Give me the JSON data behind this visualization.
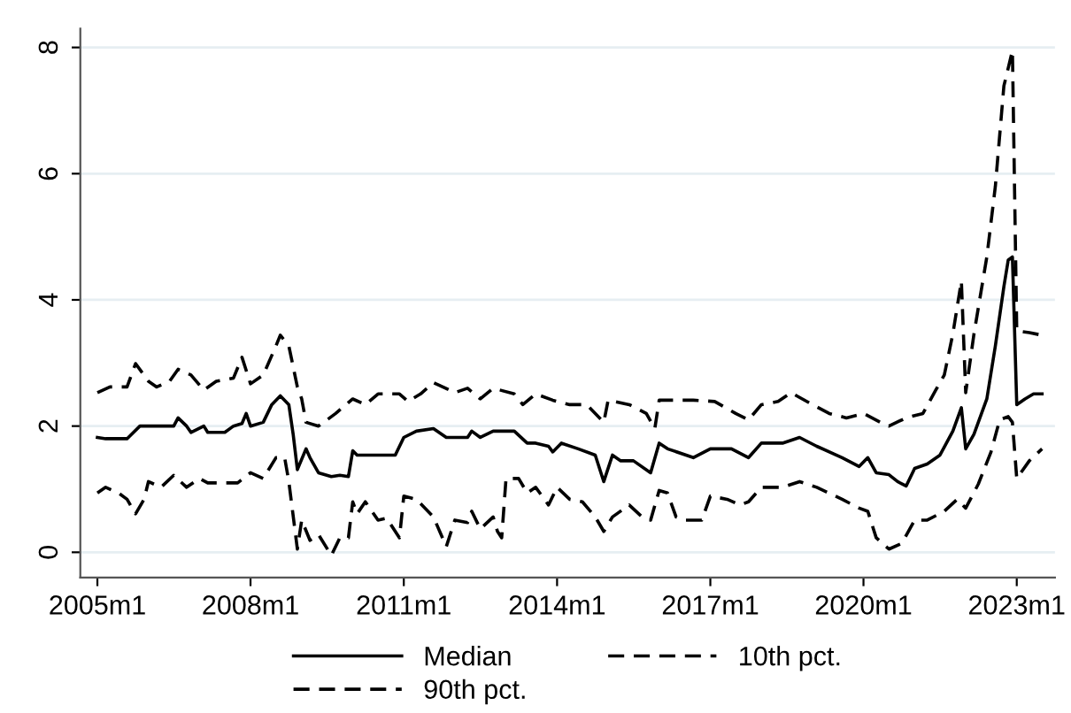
{
  "chart_data": {
    "type": "line",
    "xlim": [
      "2004-09",
      "2023-10"
    ],
    "ylim": [
      -0.4,
      8.3
    ],
    "xticks": [
      {
        "value": "2005-01",
        "label": "2005m1"
      },
      {
        "value": "2008-01",
        "label": "2008m1"
      },
      {
        "value": "2011-01",
        "label": "2011m1"
      },
      {
        "value": "2014-01",
        "label": "2014m1"
      },
      {
        "value": "2017-01",
        "label": "2017m1"
      },
      {
        "value": "2020-01",
        "label": "2020m1"
      },
      {
        "value": "2023-01",
        "label": "2023m1"
      }
    ],
    "yticks": [
      0,
      2,
      4,
      6,
      8
    ],
    "grid": "y",
    "legend": "bottom",
    "series": [
      {
        "name": "Median",
        "color": "#000000",
        "line_style": "solid",
        "x": [
          "2005-01",
          "2005-03",
          "2005-08",
          "2005-11",
          "2006-07",
          "2006-08",
          "2006-10",
          "2006-11",
          "2007-02",
          "2007-03",
          "2007-07",
          "2007-09",
          "2007-11",
          "2007-12",
          "2008-01",
          "2008-04",
          "2008-06",
          "2008-08",
          "2008-10",
          "2008-11",
          "2008-12",
          "2009-02",
          "2009-03",
          "2009-05",
          "2009-08",
          "2009-10",
          "2009-12",
          "2010-01",
          "2010-02",
          "2010-04",
          "2010-11",
          "2011-01",
          "2011-04",
          "2011-08",
          "2011-11",
          "2012-04",
          "2012-05",
          "2012-07",
          "2012-10",
          "2013-03",
          "2013-06",
          "2013-08",
          "2013-11",
          "2013-12",
          "2014-02",
          "2014-06",
          "2014-10",
          "2014-12",
          "2015-02",
          "2015-04",
          "2015-07",
          "2015-11",
          "2016-01",
          "2016-03",
          "2016-09",
          "2017-01",
          "2017-06",
          "2017-10",
          "2018-01",
          "2018-06",
          "2018-10",
          "2019-02",
          "2019-08",
          "2019-12",
          "2020-02",
          "2020-04",
          "2020-07",
          "2020-09",
          "2020-11",
          "2021-01",
          "2021-04",
          "2021-07",
          "2021-10",
          "2021-12",
          "2022-01",
          "2022-03",
          "2022-06",
          "2022-08",
          "2022-10",
          "2022-11",
          "2022-12",
          "2023-01",
          "2023-03",
          "2023-05",
          "2023-07"
        ],
        "values": [
          1.82,
          1.8,
          1.8,
          2.0,
          2.0,
          2.13,
          2.0,
          1.9,
          2.0,
          1.9,
          1.9,
          2.0,
          2.04,
          2.2,
          2.0,
          2.06,
          2.34,
          2.48,
          2.34,
          1.87,
          1.31,
          1.64,
          1.5,
          1.26,
          1.2,
          1.22,
          1.2,
          1.61,
          1.54,
          1.54,
          1.54,
          1.82,
          1.92,
          1.96,
          1.82,
          1.82,
          1.92,
          1.82,
          1.92,
          1.92,
          1.73,
          1.73,
          1.68,
          1.59,
          1.73,
          1.64,
          1.54,
          1.12,
          1.54,
          1.45,
          1.45,
          1.26,
          1.73,
          1.64,
          1.5,
          1.64,
          1.64,
          1.5,
          1.73,
          1.73,
          1.82,
          1.68,
          1.5,
          1.36,
          1.5,
          1.26,
          1.23,
          1.12,
          1.05,
          1.33,
          1.4,
          1.54,
          1.92,
          2.29,
          1.64,
          1.87,
          2.43,
          3.27,
          4.21,
          4.63,
          4.68,
          2.34,
          2.43,
          2.51,
          2.51
        ]
      },
      {
        "name": "10th pct.",
        "color": "#000000",
        "line_style": "dashed",
        "x": [
          "2005-01",
          "2005-03",
          "2005-06",
          "2005-08",
          "2005-10",
          "2005-12",
          "2006-01",
          "2006-04",
          "2006-07",
          "2006-10",
          "2007-01",
          "2007-03",
          "2007-10",
          "2008-01",
          "2008-04",
          "2008-07",
          "2008-09",
          "2008-10",
          "2008-12",
          "2009-01",
          "2009-03",
          "2009-05",
          "2009-08",
          "2009-10",
          "2009-12",
          "2010-01",
          "2010-02",
          "2010-04",
          "2010-07",
          "2010-09",
          "2010-12",
          "2011-01",
          "2011-04",
          "2011-08",
          "2011-11",
          "2012-01",
          "2012-04",
          "2012-05",
          "2012-07",
          "2012-10",
          "2012-11",
          "2012-12",
          "2013-01",
          "2013-04",
          "2013-06",
          "2013-08",
          "2013-11",
          "2014-01",
          "2014-04",
          "2014-07",
          "2014-10",
          "2014-12",
          "2015-02",
          "2015-06",
          "2015-09",
          "2015-11",
          "2016-01",
          "2016-03",
          "2016-05",
          "2016-07",
          "2016-11",
          "2017-01",
          "2017-05",
          "2017-08",
          "2017-10",
          "2018-01",
          "2018-06",
          "2018-10",
          "2019-02",
          "2019-08",
          "2019-12",
          "2020-02",
          "2020-04",
          "2020-07",
          "2020-10",
          "2021-01",
          "2021-04",
          "2021-08",
          "2021-11",
          "2022-01",
          "2022-04",
          "2022-07",
          "2022-09",
          "2022-11",
          "2022-12",
          "2023-01",
          "2023-04",
          "2023-07"
        ],
        "values": [
          0.94,
          1.03,
          0.94,
          0.84,
          0.61,
          0.84,
          1.12,
          1.03,
          1.22,
          1.03,
          1.17,
          1.1,
          1.1,
          1.26,
          1.17,
          1.5,
          1.5,
          1.12,
          0.05,
          0.51,
          0.19,
          0.28,
          -0.05,
          0.23,
          0.23,
          0.8,
          0.61,
          0.8,
          0.51,
          0.54,
          0.23,
          0.89,
          0.84,
          0.56,
          0.09,
          0.51,
          0.47,
          0.65,
          0.37,
          0.56,
          0.33,
          0.23,
          1.17,
          1.17,
          0.94,
          1.03,
          0.75,
          1.03,
          0.84,
          0.8,
          0.56,
          0.33,
          0.56,
          0.75,
          0.56,
          0.51,
          0.98,
          0.94,
          0.56,
          0.51,
          0.51,
          0.89,
          0.84,
          0.75,
          0.8,
          1.03,
          1.03,
          1.12,
          1.03,
          0.84,
          0.7,
          0.65,
          0.23,
          0.05,
          0.14,
          0.51,
          0.51,
          0.65,
          0.84,
          0.7,
          1.08,
          1.59,
          2.1,
          2.15,
          2.06,
          1.17,
          1.45,
          1.64
        ]
      },
      {
        "name": "90th pct.",
        "color": "#000000",
        "line_style": "dashed",
        "x": [
          "2005-01",
          "2005-04",
          "2005-08",
          "2005-10",
          "2006-01",
          "2006-03",
          "2006-06",
          "2006-08",
          "2006-11",
          "2007-02",
          "2007-05",
          "2007-09",
          "2007-11",
          "2008-01",
          "2008-04",
          "2008-07",
          "2008-08",
          "2008-10",
          "2008-12",
          "2009-01",
          "2009-02",
          "2009-05",
          "2009-09",
          "2010-01",
          "2010-04",
          "2010-07",
          "2010-12",
          "2011-02",
          "2011-05",
          "2011-08",
          "2012-01",
          "2012-04",
          "2012-07",
          "2012-10",
          "2013-03",
          "2013-05",
          "2013-08",
          "2013-12",
          "2014-04",
          "2014-08",
          "2014-12",
          "2015-01",
          "2015-06",
          "2015-10",
          "2015-12",
          "2016-01",
          "2016-09",
          "2017-02",
          "2017-07",
          "2017-10",
          "2018-01",
          "2018-05",
          "2018-08",
          "2019-01",
          "2019-05",
          "2019-09",
          "2020-01",
          "2020-05",
          "2020-07",
          "2020-11",
          "2021-03",
          "2021-06",
          "2021-08",
          "2021-10",
          "2021-12",
          "2022-01",
          "2022-03",
          "2022-06",
          "2022-08",
          "2022-10",
          "2022-12",
          "2023-01",
          "2023-04",
          "2023-07"
        ],
        "values": [
          2.53,
          2.62,
          2.62,
          2.99,
          2.71,
          2.62,
          2.71,
          2.9,
          2.81,
          2.57,
          2.71,
          2.76,
          3.09,
          2.67,
          2.81,
          3.27,
          3.44,
          3.27,
          2.62,
          2.43,
          2.06,
          2.0,
          2.2,
          2.43,
          2.34,
          2.51,
          2.51,
          2.39,
          2.51,
          2.69,
          2.53,
          2.6,
          2.43,
          2.6,
          2.51,
          2.34,
          2.51,
          2.41,
          2.34,
          2.34,
          2.06,
          2.41,
          2.34,
          2.2,
          1.96,
          2.41,
          2.41,
          2.39,
          2.2,
          2.1,
          2.34,
          2.39,
          2.53,
          2.34,
          2.2,
          2.13,
          2.2,
          2.06,
          2.0,
          2.13,
          2.2,
          2.57,
          2.81,
          3.46,
          4.3,
          2.53,
          3.46,
          4.68,
          5.8,
          7.39,
          7.95,
          3.51,
          3.48,
          3.44
        ]
      }
    ]
  }
}
